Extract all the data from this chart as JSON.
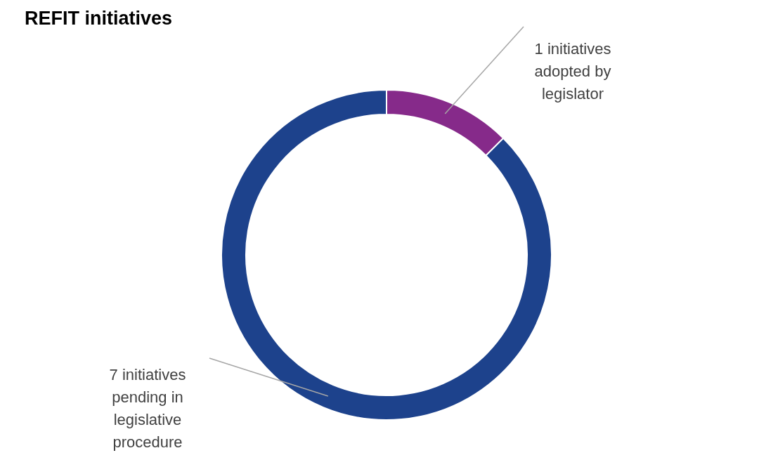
{
  "chart_data": {
    "type": "donut",
    "title": "REFIT initiatives",
    "categories": [
      "1 initiatives adopted by legislator",
      "7 initiatives pending in legislative procedure"
    ],
    "values": [
      1,
      7
    ],
    "colors": [
      "#862a8a",
      "#1d428c"
    ]
  }
}
